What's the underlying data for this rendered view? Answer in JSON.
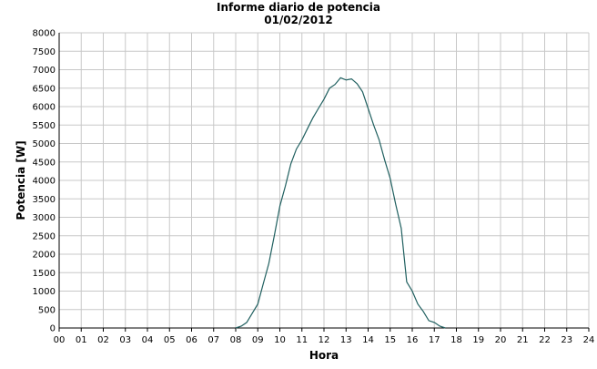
{
  "chart_data": {
    "type": "line",
    "title": "Informe diario de potencia",
    "subtitle": "01/02/2012",
    "xlabel": "Hora",
    "ylabel": "Potencia [W]",
    "xlim": [
      0,
      24
    ],
    "ylim": [
      0,
      8000
    ],
    "xticks": [
      "00",
      "01",
      "02",
      "03",
      "04",
      "05",
      "06",
      "07",
      "08",
      "09",
      "10",
      "11",
      "12",
      "13",
      "14",
      "15",
      "16",
      "17",
      "18",
      "19",
      "20",
      "21",
      "22",
      "23",
      "24"
    ],
    "yticks": [
      0,
      500,
      1000,
      1500,
      2000,
      2500,
      3000,
      3500,
      4000,
      4500,
      5000,
      5500,
      6000,
      6500,
      7000,
      7500,
      8000
    ],
    "grid": true,
    "series_color": "#1f5f5f",
    "x": [
      8.0,
      8.25,
      8.5,
      8.75,
      9.0,
      9.25,
      9.5,
      9.75,
      10.0,
      10.25,
      10.5,
      10.75,
      11.0,
      11.25,
      11.5,
      11.75,
      12.0,
      12.25,
      12.5,
      12.75,
      13.0,
      13.25,
      13.5,
      13.75,
      14.0,
      14.25,
      14.5,
      14.75,
      15.0,
      15.25,
      15.5,
      15.75,
      16.0,
      16.25,
      16.5,
      16.75,
      17.0,
      17.25,
      17.5
    ],
    "y": [
      0,
      50,
      150,
      400,
      650,
      1200,
      1750,
      2500,
      3300,
      3850,
      4450,
      4850,
      5100,
      5400,
      5700,
      5950,
      6200,
      6500,
      6600,
      6780,
      6720,
      6750,
      6620,
      6400,
      5950,
      5500,
      5100,
      4550,
      4050,
      3350,
      2700,
      1250,
      1000,
      650,
      450,
      200,
      150,
      50,
      0
    ]
  }
}
